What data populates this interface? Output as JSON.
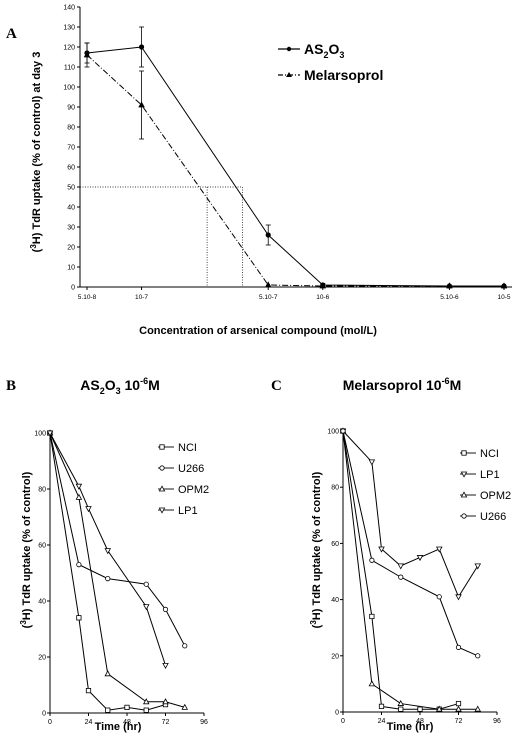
{
  "chart_data": [
    {
      "panel": "A",
      "type": "line",
      "ylabel": "(³H) TdR uptake (% of control) at day 3",
      "xlabel": "Concentration of arsenical compound (mol/L)",
      "x_ticks": [
        "5.10-8",
        "10-7",
        "5.10-7",
        "10-6",
        "5.10-6",
        "10-5"
      ],
      "y_ticks": [
        "0",
        "10",
        "20",
        "30",
        "40",
        "50",
        "60",
        "70",
        "80",
        "90",
        "100",
        "110",
        "120",
        "130",
        "140"
      ],
      "ylim": [
        0,
        140
      ],
      "x_scale": "log",
      "xlim": [
        5e-08,
        1e-05
      ],
      "grid": false,
      "legend_position": "top-right",
      "reference_level": 50,
      "ic50_x": [
        2.3e-07,
        3.6e-07
      ],
      "series": [
        {
          "name": "AS2O3",
          "style": "solid",
          "marker": "circle-filled",
          "x": [
            5e-08,
            1e-07,
            5e-07,
            1e-06,
            5e-06,
            1e-05
          ],
          "y": [
            117,
            120,
            26,
            1,
            0.5,
            0.5
          ],
          "err": [
            5,
            10,
            5,
            0.8,
            0.5,
            0.5
          ]
        },
        {
          "name": "Melarsoprol",
          "style": "dashdot",
          "marker": "triangle-filled",
          "x": [
            5e-08,
            1e-07,
            5e-07,
            1e-06,
            5e-06,
            1e-05
          ],
          "y": [
            116,
            91,
            1,
            0.5,
            0.5,
            0.5
          ],
          "err": [
            6,
            17,
            0.5,
            0.5,
            0.5,
            0.5
          ]
        }
      ]
    },
    {
      "panel": "B",
      "type": "line",
      "title": "AS2O3 10-6M",
      "ylabel": "(³H) TdR uptake (% of control)",
      "xlabel": "Time (hr)",
      "x_ticks": [
        "0",
        "24",
        "48",
        "72",
        "96"
      ],
      "y_ticks": [
        "0",
        "20",
        "40",
        "60",
        "80",
        "100"
      ],
      "xlim": [
        0,
        96
      ],
      "ylim": [
        0,
        100
      ],
      "legend_position": "top-right",
      "series": [
        {
          "name": "NCI",
          "marker": "square",
          "x": [
            0,
            18,
            24,
            36,
            48,
            60,
            72
          ],
          "y": [
            100,
            34,
            8,
            1,
            2,
            1,
            3
          ]
        },
        {
          "name": "U266",
          "marker": "circle",
          "x": [
            0,
            18,
            36,
            60,
            72,
            84
          ],
          "y": [
            100,
            53,
            48,
            46,
            37,
            24
          ]
        },
        {
          "name": "OPM2",
          "marker": "triangle-up",
          "x": [
            0,
            18,
            36,
            60,
            72,
            84
          ],
          "y": [
            100,
            77,
            14,
            4,
            4,
            2
          ]
        },
        {
          "name": "LP1",
          "marker": "triangle-down",
          "x": [
            0,
            18,
            24,
            36,
            60,
            72
          ],
          "y": [
            100,
            81,
            73,
            58,
            38,
            17
          ]
        }
      ]
    },
    {
      "panel": "C",
      "type": "line",
      "title": "Melarsoprol 10-6M",
      "ylabel": "(³H) TdR uptake (% of control)",
      "xlabel": "Time (hr)",
      "x_ticks": [
        "0",
        "24",
        "48",
        "72",
        "96"
      ],
      "y_ticks": [
        "0",
        "20",
        "40",
        "60",
        "80",
        "100"
      ],
      "xlim": [
        0,
        96
      ],
      "ylim": [
        0,
        100
      ],
      "legend_position": "top-right",
      "series": [
        {
          "name": "NCI",
          "marker": "square",
          "x": [
            0,
            18,
            24,
            36,
            48,
            60,
            72
          ],
          "y": [
            100,
            34,
            2,
            1,
            1,
            1,
            3
          ]
        },
        {
          "name": "LP1",
          "marker": "triangle-down",
          "x": [
            0,
            18,
            24,
            36,
            48,
            60,
            72,
            84
          ],
          "y": [
            100,
            89,
            58,
            52,
            55,
            58,
            41,
            52
          ]
        },
        {
          "name": "OPM2",
          "marker": "triangle-up",
          "x": [
            0,
            18,
            36,
            60,
            72,
            84
          ],
          "y": [
            100,
            10,
            3,
            1,
            1,
            1
          ]
        },
        {
          "name": "U266",
          "marker": "circle",
          "x": [
            0,
            18,
            36,
            60,
            72,
            84
          ],
          "y": [
            100,
            54,
            48,
            41,
            23,
            20
          ]
        }
      ]
    }
  ],
  "labels": {
    "panelA": "A",
    "panelB": "B",
    "panelC": "C",
    "legendA1_main": "AS",
    "legendA1_sub1": "2",
    "legendA1_mid": "O",
    "legendA1_sub2": "3",
    "legendA2": "Melarsoprol",
    "yA_pre": "(",
    "yA_sup": "3",
    "yA_post": "H) TdR uptake (% of control) at day 3",
    "xA": "Concentration of arsenical compound (mol/L)",
    "titleB_main": "AS",
    "titleB_sub1": "2",
    "titleB_mid": "O",
    "titleB_sub2": "3",
    "titleB_post": " 10",
    "titleB_sup": "-6",
    "titleB_end": "M",
    "titleC_main": "Melarsoprol 10",
    "titleC_sup": "-6",
    "titleC_end": "M",
    "yBC_pre": "(",
    "yBC_sup": "3",
    "yBC_post": "H) TdR uptake (% of control)",
    "xBC": "Time (hr)"
  }
}
